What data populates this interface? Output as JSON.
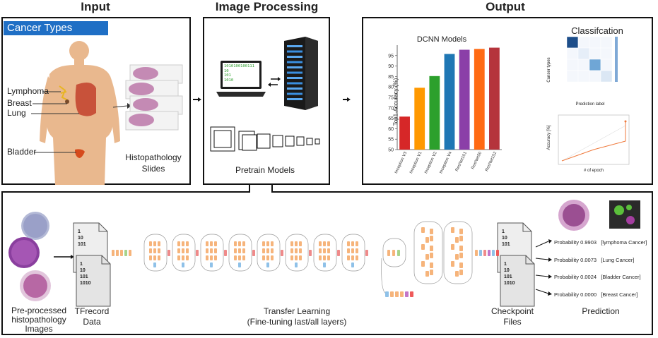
{
  "headers": {
    "input": "Input",
    "processing": "Image Processing",
    "output": "Output"
  },
  "input_panel": {
    "banner": "Cancer Types",
    "labels": {
      "lymphoma": "Lymphoma",
      "breast": "Breast",
      "lung": "Lung",
      "bladder": "Bladder"
    },
    "slides_caption_1": "Histopathology",
    "slides_caption_2": "Slides"
  },
  "processing_panel": {
    "laptop_code": [
      "1010100100111",
      "10",
      "101",
      "1010"
    ],
    "caption": "Pretrain Models"
  },
  "output_panel": {
    "bar_title": "DCNN Models",
    "cls_title": "Classifcation",
    "cls_ylabel": "Canser types",
    "cls_xlabel": "Prediction label",
    "acc_ylabel": "Accuracy [%]",
    "acc_xlabel": "# of epoch"
  },
  "chart_data": {
    "type": "bar",
    "title": "DCNN Models",
    "ylabel": "Top1-Accuracy (%)",
    "xlabel": "",
    "ylim": [
      50,
      100
    ],
    "yticks": [
      50,
      55,
      60,
      65,
      70,
      75,
      80,
      85,
      90,
      95
    ],
    "categories": [
      "Inception V3",
      "Inception V1",
      "Inception V2",
      "Inception V4",
      "ResNet101",
      "ResNet50",
      "ResNet152"
    ],
    "values": [
      65.8,
      79.6,
      85.2,
      95.8,
      97.8,
      98.2,
      98.8
    ],
    "colors": [
      "#d62728",
      "#ff9900",
      "#2ca02c",
      "#1f77b4",
      "#8b3fa8",
      "#ff6a13",
      "#b5343c"
    ],
    "grid": false
  },
  "pipeline": {
    "images_caption": [
      "Pre-processed",
      "histopathology",
      "Images"
    ],
    "tfrecord_caption": [
      "TFrecord",
      "Data"
    ],
    "tfrecord_code": [
      "1",
      "10",
      "101",
      "1010"
    ],
    "transfer_caption": [
      "Transfer Learning",
      "(Fine-tuning last/all layers)"
    ],
    "checkpoint_caption": [
      "Checkpoint",
      "Files"
    ],
    "prediction_caption": "Prediction",
    "predictions": [
      {
        "text": "Probability  0.9903",
        "cls": "[lymphoma Cancer]"
      },
      {
        "text": "Probability  0.0073",
        "cls": "[Lung Cancer]"
      },
      {
        "text": "Probability  0.0024",
        "cls": "[Bladder Cancer]"
      },
      {
        "text": "Probability  0.0000",
        "cls": "[Breast Cancer]"
      }
    ]
  },
  "colors": {
    "banner": "#1f6fc5",
    "skin": "#e9b88e",
    "organ": "#c8523a",
    "bladder": "#d64a1c"
  }
}
